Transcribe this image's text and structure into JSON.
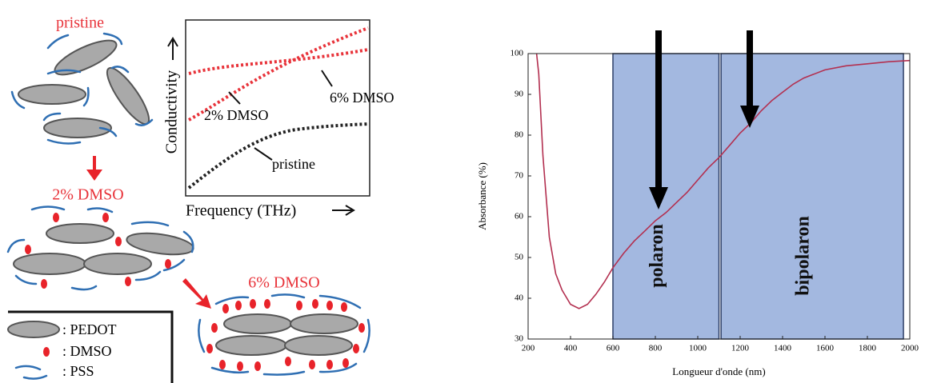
{
  "diagram": {
    "states": [
      "pristine",
      "2% DMSO",
      "6% DMSO"
    ],
    "inset": {
      "ylabel": "Conductivity",
      "xlabel": "Frequency (THz)",
      "curve_labels": [
        "6% DMSO",
        "2% DMSO",
        "pristine"
      ]
    },
    "legend": [
      ": PEDOT",
      ": DMSO",
      ": PSS"
    ]
  },
  "chart_data": {
    "type": "line",
    "xlabel": "Longueur d'onde (nm)",
    "ylabel": "Absorbance (%)",
    "xlim": [
      200,
      2000
    ],
    "ylim": [
      30,
      100
    ],
    "xticks": [
      200,
      400,
      600,
      800,
      1000,
      1200,
      1400,
      1600,
      1800,
      2000
    ],
    "yticks": [
      30,
      40,
      50,
      60,
      70,
      80,
      90,
      100
    ],
    "regions": [
      {
        "xlim": [
          600,
          1100
        ],
        "label": "polaron",
        "color": "#a3b8e0"
      },
      {
        "xlim": [
          1110,
          1970
        ],
        "label": "bipolaron",
        "color": "#a3b8e0"
      }
    ],
    "series": [
      {
        "color": "#b33050",
        "x": [
          240,
          250,
          270,
          300,
          330,
          360,
          400,
          440,
          480,
          520,
          560,
          600,
          650,
          700,
          750,
          800,
          850,
          900,
          950,
          1000,
          1050,
          1100,
          1150,
          1200,
          1250,
          1300,
          1350,
          1400,
          1450,
          1500,
          1600,
          1700,
          1800,
          1900,
          2000
        ],
        "values": [
          100,
          95,
          75,
          55,
          46,
          42,
          38.5,
          37.5,
          38.5,
          41,
          44,
          47.5,
          51,
          54,
          56.5,
          59,
          61,
          63.5,
          66,
          69,
          72,
          74.5,
          77.5,
          80.5,
          83,
          86,
          88.5,
          90.5,
          92.5,
          94,
          96,
          97,
          97.5,
          98,
          98.3
        ]
      }
    ]
  }
}
